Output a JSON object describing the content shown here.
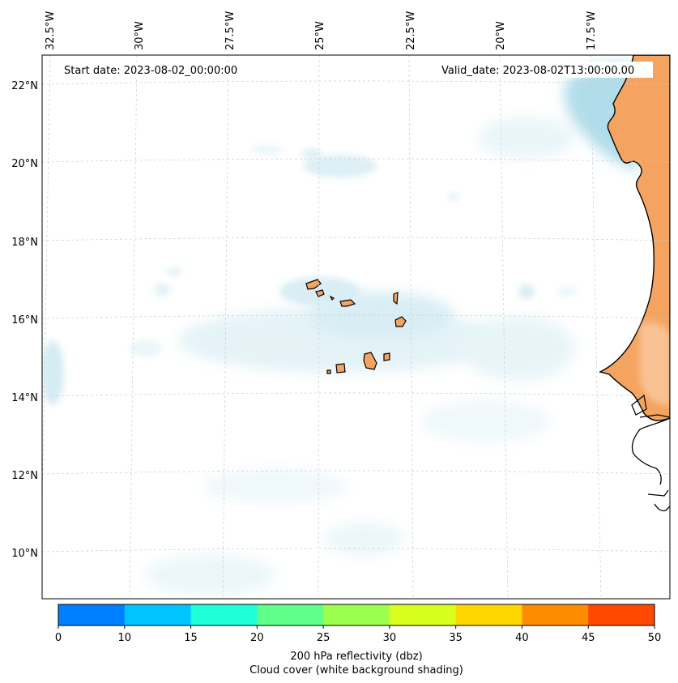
{
  "header": {
    "start_date": "Start date: 2023-08-02_00:00:00",
    "valid_date": "Valid_date: 2023-08-02T13:00:00.00"
  },
  "map": {
    "lon_labels": [
      "32.5°W",
      "30°W",
      "27.5°W",
      "25°W",
      "22.5°W",
      "20°W",
      "17.5°W"
    ],
    "lat_labels": [
      "22°N",
      "20°N",
      "18°N",
      "16°N",
      "14°N",
      "12°N",
      "10°N"
    ],
    "gridlines": true,
    "land_color": "#f4a460",
    "cloud_color": "#a8d8e6"
  },
  "colorbar": {
    "levels": [
      "0",
      "10",
      "15",
      "20",
      "25",
      "30",
      "35",
      "40",
      "45",
      "50"
    ],
    "colors": [
      "#0080ff",
      "#00c4ff",
      "#1effd8",
      "#60ff8a",
      "#9cff50",
      "#d8ff1e",
      "#ffd600",
      "#ff8c00",
      "#ff4800"
    ],
    "label_line1": "200 hPa reflectivity (dbz)",
    "label_line2": "Cloud cover (white background shading)"
  }
}
